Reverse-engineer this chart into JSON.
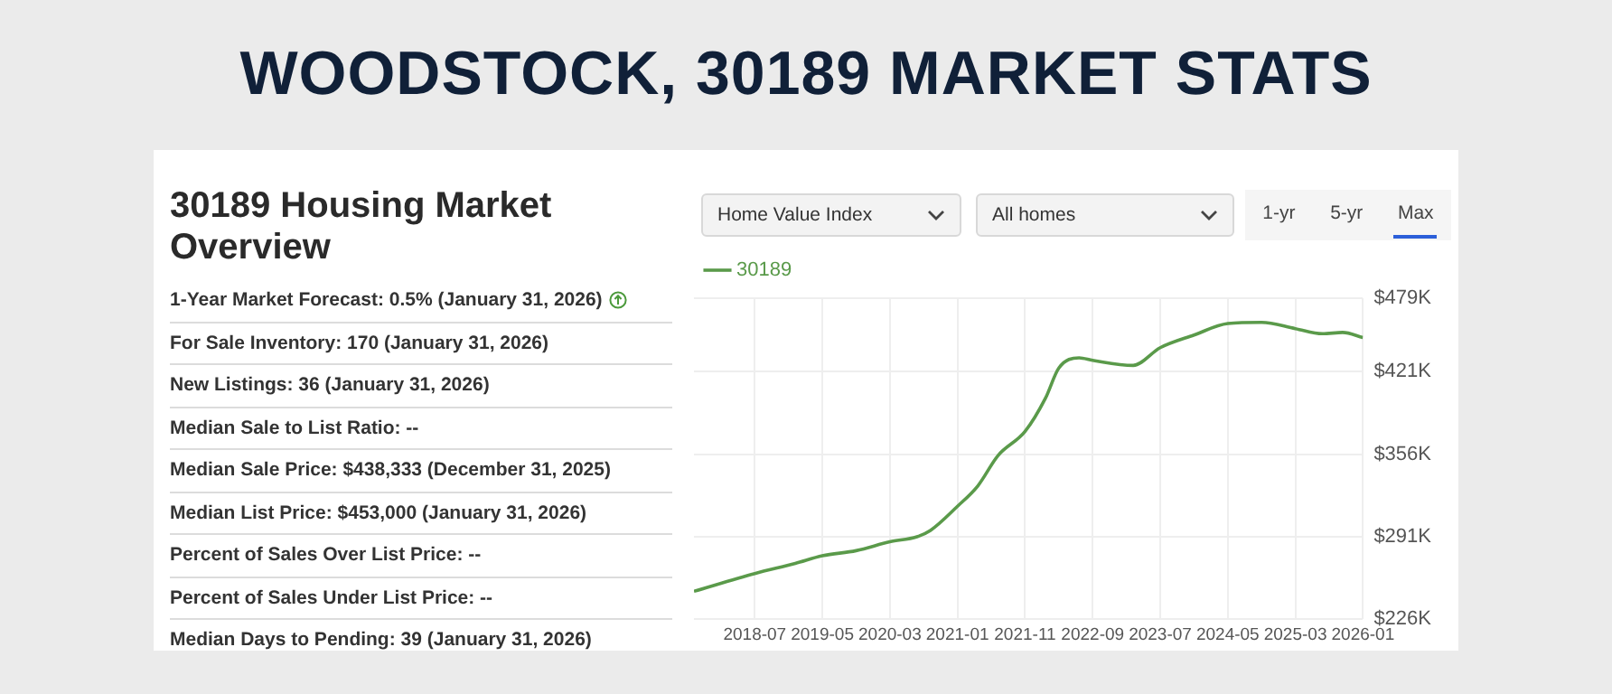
{
  "chart_data": {
    "type": "line",
    "title": "WOODSTOCK, 30189 MARKET STATS",
    "subtitle": "30189 Housing Market Overview",
    "annotations": [
      "Home Value Index",
      "All homes",
      "1-yr",
      "5-yr",
      "Max",
      "1-Year Market Forecast: 0.5% (January 31, 2026)",
      "For Sale Inventory: 170 (January 31, 2026)",
      "New Listings: 36 (January 31, 2026)",
      "Median Sale to List Ratio: --",
      "Median Sale Price: $438,333 (December 31, 2025)",
      "Median List Price: $453,000 (January 31, 2026)",
      "Percent of Sales Over List Price: --",
      "Percent of Sales Under List Price: --",
      "Median Days to Pending: 39 (January 31, 2026)"
    ],
    "series": [
      {
        "name": "30189",
        "color": "#5a9a4a",
        "x": [
          "2017-10",
          "2018-07",
          "2019-01",
          "2019-05",
          "2019-10",
          "2020-03",
          "2020-07",
          "2020-09",
          "2021-01",
          "2021-04",
          "2021-07",
          "2021-11",
          "2022-02",
          "2022-04",
          "2022-07",
          "2022-09",
          "2023-03",
          "2023-07",
          "2023-12",
          "2024-05",
          "2024-10",
          "2025-03",
          "2025-07",
          "2025-10",
          "2026-01"
        ],
        "values": [
          248000,
          262000,
          270000,
          276000,
          280000,
          287000,
          291000,
          296000,
          315000,
          331000,
          355000,
          374000,
          400000,
          424000,
          432000,
          430000,
          426000,
          440000,
          450000,
          459000,
          460000,
          455000,
          451000,
          452000,
          448000
        ]
      }
    ],
    "xlim": [
      "2017-10",
      "2026-01"
    ],
    "xticks": [
      {
        "value": "2018-07",
        "label": "2018-07"
      },
      {
        "value": "2019-05",
        "label": "2019-05"
      },
      {
        "value": "2020-03",
        "label": "2020-03"
      },
      {
        "value": "2021-01",
        "label": "2021-01"
      },
      {
        "value": "2021-11",
        "label": "2021-11"
      },
      {
        "value": "2022-09",
        "label": "2022-09"
      },
      {
        "value": "2023-07",
        "label": "2023-07"
      },
      {
        "value": "2024-05",
        "label": "2024-05"
      },
      {
        "value": "2025-03",
        "label": "2025-03"
      },
      {
        "value": "2026-01",
        "label": "2026-01"
      }
    ],
    "ylim": [
      226000,
      479000
    ],
    "yticks": [
      {
        "value": 226000,
        "label": "$226K"
      },
      {
        "value": 291000,
        "label": "$291K"
      },
      {
        "value": 356000,
        "label": "$356K"
      },
      {
        "value": 421000,
        "label": "$421K"
      },
      {
        "value": 479000,
        "label": "$479K"
      }
    ],
    "grid": true,
    "legend": "top left",
    "marker": "none",
    "line_style": "solid"
  }
}
